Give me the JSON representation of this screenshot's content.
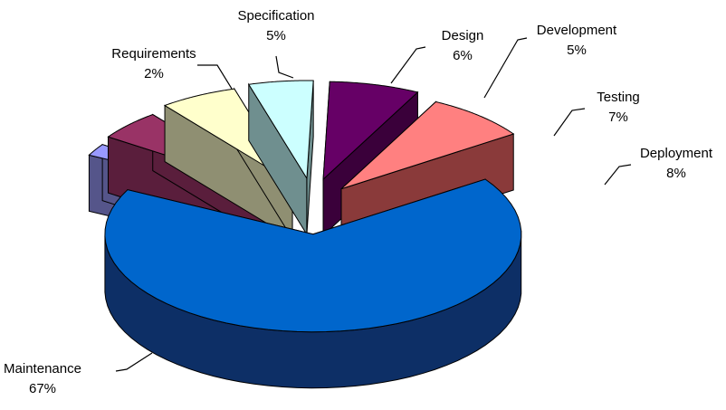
{
  "chart_data": {
    "type": "pie",
    "title": "",
    "style": "3d-exploded",
    "slices": [
      {
        "label": "Requirements",
        "value": 2,
        "value_label": "2%",
        "top_color": "#9999ff",
        "side_color": "#55558a"
      },
      {
        "label": "Specification",
        "value": 5,
        "value_label": "5%",
        "top_color": "#993366",
        "side_color": "#5a1e3c"
      },
      {
        "label": "Design",
        "value": 6,
        "value_label": "6%",
        "top_color": "#ffffcc",
        "side_color": "#8f8f72"
      },
      {
        "label": "Development",
        "value": 5,
        "value_label": "5%",
        "top_color": "#ccffff",
        "side_color": "#6f8f8f"
      },
      {
        "label": "Testing",
        "value": 7,
        "value_label": "7%",
        "top_color": "#660066",
        "side_color": "#3a003a"
      },
      {
        "label": "Deployment",
        "value": 8,
        "value_label": "8%",
        "top_color": "#ff8080",
        "side_color": "#8a3a3a"
      },
      {
        "label": "Maintenance",
        "value": 67,
        "value_label": "67%",
        "top_color": "#0066cc",
        "side_color": "#0d2f66"
      }
    ]
  }
}
